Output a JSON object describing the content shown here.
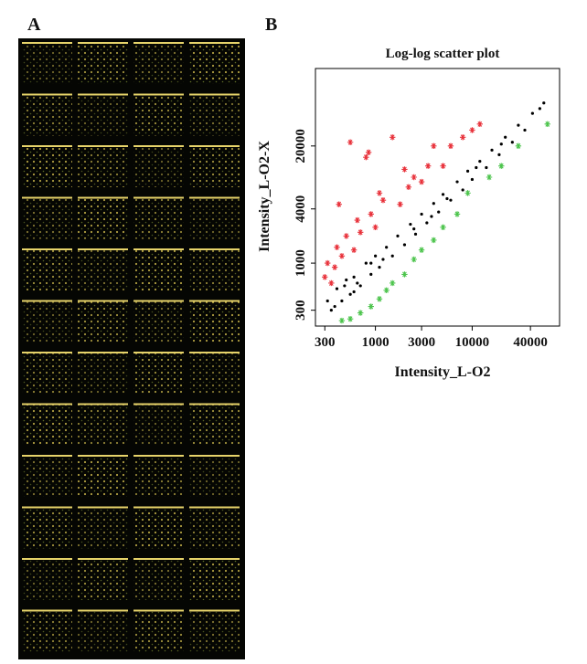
{
  "panel_labels": [
    "A",
    "B"
  ],
  "chart_data": {
    "type": "scatter",
    "title": "Log-log scatter plot",
    "x_label": "Intensity_L-O2",
    "y_label": "Intensity_L-O2-X",
    "log_x": true,
    "log_y": true,
    "xlim": [
      240,
      80000
    ],
    "ylim": [
      200,
      145000
    ],
    "xticks": [
      300,
      1000,
      3000,
      10000,
      40000
    ],
    "yticks": [
      300,
      1000,
      4000,
      20000
    ],
    "series": [
      {
        "color": "#000000",
        "marker": "dot",
        "x": [
          320,
          350,
          400,
          450,
          500,
          550,
          600,
          700,
          800,
          900,
          1000,
          1100,
          1300,
          1500,
          1700,
          2000,
          2300,
          2600,
          3000,
          3400,
          4000,
          4500,
          5000,
          6000,
          7000,
          8000,
          9000,
          10000,
          12000,
          14000,
          16000,
          19000,
          22000,
          26000,
          30000,
          35000,
          42000,
          50000,
          55000,
          380,
          480,
          650,
          1200,
          2500,
          5500,
          11000,
          600,
          900,
          3800,
          20000
        ],
        "values": [
          380,
          300,
          520,
          380,
          650,
          450,
          700,
          560,
          1000,
          750,
          1200,
          900,
          1500,
          1200,
          2000,
          1600,
          2700,
          2100,
          3500,
          2800,
          4600,
          3700,
          5800,
          5000,
          8000,
          6500,
          10500,
          8500,
          13500,
          11500,
          18000,
          16000,
          25000,
          22000,
          34000,
          30000,
          46000,
          52000,
          60000,
          330,
          560,
          600,
          1100,
          2400,
          5200,
          11500,
          480,
          1000,
          3300,
          21000
        ]
      },
      {
        "color": "#e8313a",
        "marker": "star",
        "x": [
          300,
          320,
          350,
          380,
          400,
          420,
          450,
          500,
          550,
          600,
          650,
          700,
          800,
          850,
          900,
          1000,
          1100,
          1200,
          1500,
          1800,
          2000,
          2200,
          2500,
          3000,
          3500,
          4000,
          5000,
          6000,
          8000,
          10000,
          12000
        ],
        "values": [
          700,
          1000,
          600,
          900,
          1500,
          4500,
          1200,
          2000,
          22000,
          1400,
          3000,
          2200,
          15000,
          17000,
          3500,
          2500,
          6000,
          5000,
          25000,
          4500,
          11000,
          7000,
          9000,
          8000,
          12000,
          20000,
          12000,
          20000,
          25000,
          30000,
          35000
        ]
      },
      {
        "color": "#4cc44c",
        "marker": "star",
        "x": [
          450,
          550,
          700,
          900,
          1100,
          1300,
          1500,
          2000,
          2500,
          3000,
          4000,
          5000,
          7000,
          9000,
          15000,
          20000,
          30000,
          60000
        ],
        "values": [
          230,
          240,
          280,
          330,
          400,
          500,
          600,
          750,
          1100,
          1400,
          1800,
          2500,
          3500,
          6000,
          9000,
          12000,
          20000,
          35000
        ]
      }
    ]
  }
}
